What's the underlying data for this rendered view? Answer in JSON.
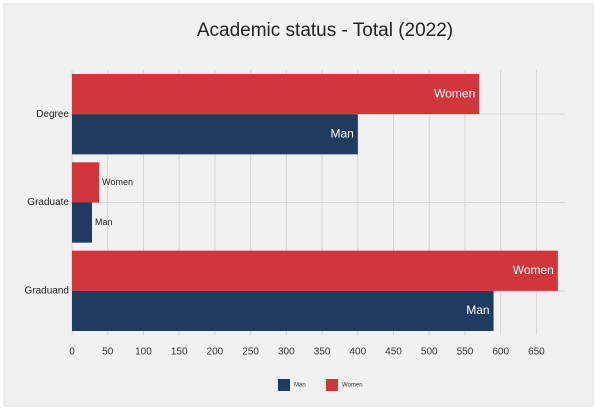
{
  "chart_data": {
    "type": "bar",
    "orientation": "horizontal",
    "title": "Academic status - Total (2022)",
    "categories": [
      "Degree",
      "Graduate",
      "Graduand"
    ],
    "series": [
      {
        "name": "Man",
        "color": "#1f3b5f",
        "values": [
          400,
          28,
          590
        ]
      },
      {
        "name": "Women",
        "color": "#d0363a",
        "values": [
          570,
          38,
          680
        ]
      }
    ],
    "xlim": [
      0,
      690
    ],
    "xticks": [
      0,
      50,
      100,
      150,
      200,
      250,
      300,
      350,
      400,
      450,
      500,
      550,
      600,
      650
    ],
    "grid": true,
    "legend": "bottom"
  }
}
